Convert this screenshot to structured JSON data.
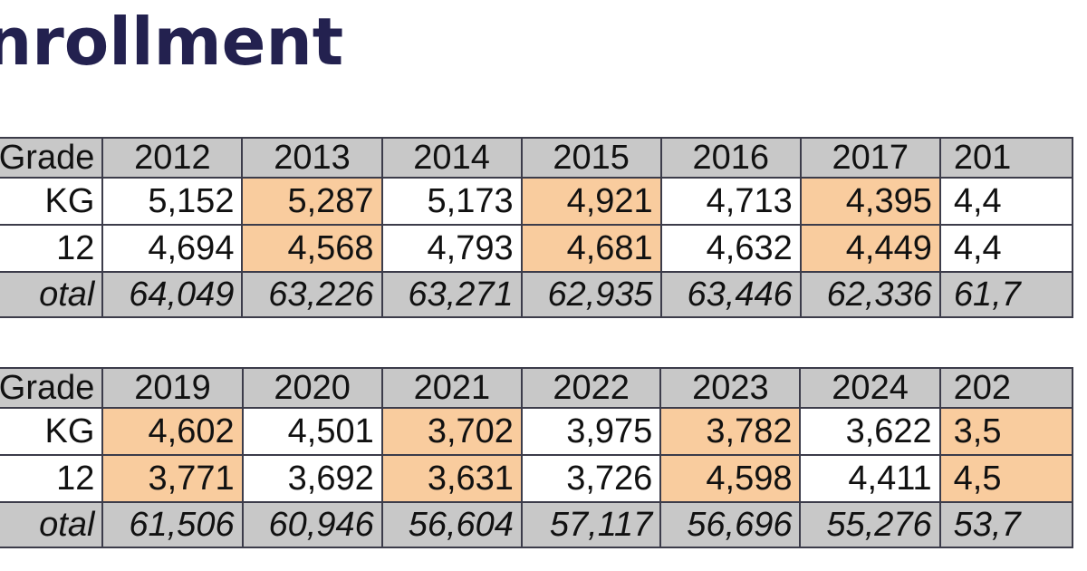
{
  "title": "nrollment",
  "tables": [
    {
      "header_label": "Grade",
      "years": [
        "2012",
        "2013",
        "2014",
        "2015",
        "2016",
        "2017",
        "201"
      ],
      "rows": [
        {
          "label": "KG",
          "values": [
            "5,152",
            "5,287",
            "5,173",
            "4,921",
            "4,713",
            "4,395",
            "4,4"
          ]
        },
        {
          "label": "12",
          "values": [
            "4,694",
            "4,568",
            "4,793",
            "4,681",
            "4,632",
            "4,449",
            "4,4"
          ]
        }
      ],
      "total_label": "otal",
      "totals": [
        "64,049",
        "63,226",
        "63,271",
        "62,935",
        "63,446",
        "62,336",
        "61,7"
      ],
      "highlight_color": "#f9cc9e",
      "header_color": "#c8c8c8"
    },
    {
      "header_label": "Grade",
      "years": [
        "2019",
        "2020",
        "2021",
        "2022",
        "2023",
        "2024",
        "202"
      ],
      "rows": [
        {
          "label": "KG",
          "values": [
            "4,602",
            "4,501",
            "3,702",
            "3,975",
            "3,782",
            "3,622",
            "3,5"
          ]
        },
        {
          "label": "12",
          "values": [
            "3,771",
            "3,692",
            "3,631",
            "3,726",
            "4,598",
            "4,411",
            "4,5"
          ]
        }
      ],
      "total_label": "otal",
      "totals": [
        "61,506",
        "60,946",
        "56,604",
        "57,117",
        "56,696",
        "55,276",
        "53,7"
      ],
      "highlight_color": "#f9cc9e",
      "header_color": "#c8c8c8"
    }
  ]
}
